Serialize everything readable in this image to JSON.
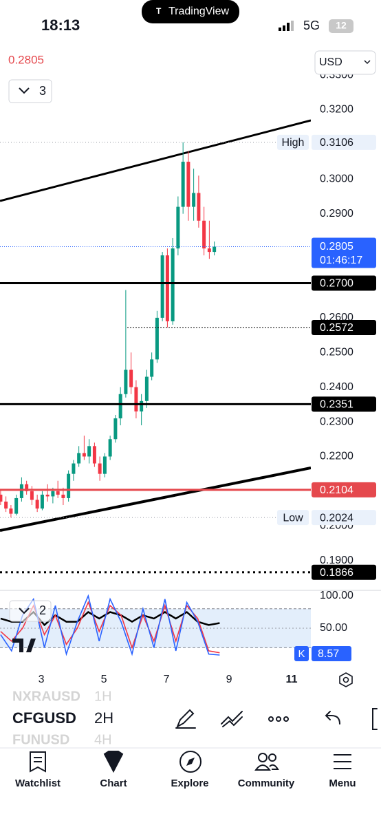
{
  "status": {
    "time": "18:13",
    "app": "TradingView",
    "network": "5G",
    "battery": "12"
  },
  "header": {
    "last_price": "0.2805",
    "indicator_count": "3",
    "currency": "USD"
  },
  "chart_data": [
    {
      "type": "candlestick",
      "x": [
        1.7,
        1.87,
        2.03,
        2.2,
        2.37,
        2.53,
        2.7,
        2.87,
        3.03,
        3.2,
        3.37,
        3.53,
        3.7,
        3.87,
        4.03,
        4.2,
        4.37,
        4.53,
        4.7,
        4.87,
        5.03,
        5.2,
        5.37,
        5.53,
        5.7,
        5.87,
        6.03,
        6.2,
        6.37,
        6.53,
        6.7,
        6.87,
        7.03,
        7.2,
        7.37,
        7.53,
        7.7,
        7.87,
        8.03,
        8.2,
        8.37,
        8.53
      ],
      "open": [
        0.209,
        0.207,
        0.205,
        0.2035,
        0.208,
        0.212,
        0.21,
        0.2075,
        0.205,
        0.209,
        0.2085,
        0.21,
        0.209,
        0.208,
        0.215,
        0.218,
        0.221,
        0.22,
        0.223,
        0.218,
        0.215,
        0.22,
        0.225,
        0.231,
        0.238,
        0.245,
        0.24,
        0.233,
        0.236,
        0.243,
        0.248,
        0.26,
        0.278,
        0.259,
        0.28,
        0.292,
        0.305,
        0.292,
        0.296,
        0.288,
        0.28,
        0.279
      ],
      "high": [
        0.2105,
        0.2085,
        0.206,
        0.209,
        0.214,
        0.213,
        0.2115,
        0.209,
        0.21,
        0.212,
        0.211,
        0.213,
        0.211,
        0.216,
        0.219,
        0.223,
        0.226,
        0.225,
        0.224,
        0.22,
        0.221,
        0.226,
        0.232,
        0.24,
        0.268,
        0.25,
        0.242,
        0.238,
        0.245,
        0.25,
        0.262,
        0.279,
        0.28,
        0.283,
        0.295,
        0.3106,
        0.308,
        0.303,
        0.301,
        0.292,
        0.288,
        0.282
      ],
      "low": [
        0.206,
        0.204,
        0.2024,
        0.203,
        0.207,
        0.209,
        0.206,
        0.204,
        0.2045,
        0.207,
        0.2065,
        0.208,
        0.206,
        0.207,
        0.213,
        0.217,
        0.219,
        0.218,
        0.217,
        0.213,
        0.214,
        0.219,
        0.224,
        0.229,
        0.237,
        0.238,
        0.231,
        0.229,
        0.234,
        0.242,
        0.247,
        0.259,
        0.2572,
        0.258,
        0.278,
        0.29,
        0.288,
        0.288,
        0.286,
        0.278,
        0.277,
        0.278
      ],
      "close": [
        0.207,
        0.205,
        0.2035,
        0.208,
        0.212,
        0.21,
        0.2075,
        0.205,
        0.209,
        0.2085,
        0.21,
        0.209,
        0.208,
        0.215,
        0.218,
        0.221,
        0.22,
        0.223,
        0.218,
        0.215,
        0.22,
        0.225,
        0.231,
        0.238,
        0.245,
        0.24,
        0.233,
        0.236,
        0.243,
        0.248,
        0.26,
        0.278,
        0.259,
        0.28,
        0.292,
        0.305,
        0.292,
        0.296,
        0.288,
        0.28,
        0.279,
        0.2805
      ],
      "up_color": "#089981",
      "down_color": "#f23645",
      "xlim": [
        1.68,
        11.615
      ],
      "xticks": [
        3,
        5,
        7,
        9,
        11
      ],
      "ylim": [
        0.1814,
        0.3318
      ],
      "yticks": [
        {
          "value": 0.33,
          "label": "0.3300"
        },
        {
          "value": 0.32,
          "label": "0.3200"
        },
        {
          "value": 0.31,
          "label": "0.3100"
        },
        {
          "value": 0.3,
          "label": "0.3000"
        },
        {
          "value": 0.29,
          "label": "0.2900"
        },
        {
          "value": 0.28,
          "label": "0.2800"
        },
        {
          "value": 0.27,
          "label": "0.2700"
        },
        {
          "value": 0.26,
          "label": "0.2600"
        },
        {
          "value": 0.25,
          "label": "0.2500"
        },
        {
          "value": 0.24,
          "label": "0.2400"
        },
        {
          "value": 0.23,
          "label": "0.2300"
        },
        {
          "value": 0.22,
          "label": "0.2200"
        },
        {
          "value": 0.21,
          "label": "0.2100"
        },
        {
          "value": 0.2,
          "label": "0.2000"
        },
        {
          "value": 0.19,
          "label": "0.1900"
        }
      ],
      "levels": [
        {
          "value": 0.27,
          "label": "0.2700",
          "color": "#000000",
          "style": "solid"
        },
        {
          "value": 0.2572,
          "label": "0.2572",
          "color": "#000000",
          "style": "dotted"
        },
        {
          "value": 0.2351,
          "label": "0.2351",
          "color": "#000000",
          "style": "solid"
        },
        {
          "value": 0.2104,
          "label": "0.2104",
          "color": "#e5484d",
          "style": "solid"
        },
        {
          "value": 0.1866,
          "label": "0.1866",
          "color": "#000000",
          "style": "dotted"
        }
      ],
      "high_marker": {
        "name": "High",
        "value": 0.3106,
        "label": "0.3106"
      },
      "low_marker": {
        "name": "Low",
        "value": 0.2024,
        "label": "0.2024"
      },
      "last": {
        "value": 0.2805,
        "label": "0.2805",
        "countdown": "01:46:17",
        "color": "#2962ff"
      }
    },
    {
      "type": "line",
      "indicator_count": "2",
      "x": [
        1.7,
        2.05,
        2.4,
        2.75,
        3.1,
        3.45,
        3.8,
        4.15,
        4.5,
        4.85,
        5.2,
        5.55,
        5.9,
        6.25,
        6.6,
        6.95,
        7.3,
        7.65,
        8.0,
        8.35,
        8.7
      ],
      "series": [
        {
          "color": "#000000",
          "values": [
            65,
            60,
            60,
            75,
            55,
            70,
            60,
            60,
            75,
            65,
            75,
            70,
            60,
            70,
            65,
            75,
            65,
            75,
            60,
            55,
            58
          ]
        },
        {
          "color": "#f23645",
          "values": [
            45,
            30,
            50,
            85,
            40,
            70,
            25,
            50,
            90,
            45,
            85,
            70,
            20,
            70,
            30,
            85,
            30,
            85,
            65,
            15,
            12
          ]
        },
        {
          "color": "#2962ff",
          "values": [
            40,
            15,
            70,
            95,
            20,
            85,
            10,
            60,
            100,
            30,
            95,
            60,
            10,
            80,
            20,
            95,
            15,
            90,
            60,
            10,
            8.57
          ]
        }
      ],
      "ylim": [
        -10.6,
        108.5
      ],
      "yticks": [
        {
          "value": 100,
          "label": "100.00"
        },
        {
          "value": 50,
          "label": "50.00"
        }
      ],
      "band": [
        80,
        20
      ],
      "k_name": "K",
      "k_value": "8.57"
    }
  ],
  "toolbar": {
    "symbols": [
      "NXRAUSD",
      "CFGUSD",
      "FUNUSD"
    ],
    "intervals": [
      "1H",
      "2H",
      "4H"
    ]
  },
  "tabs": [
    "Watchlist",
    "Chart",
    "Explore",
    "Community",
    "Menu"
  ]
}
